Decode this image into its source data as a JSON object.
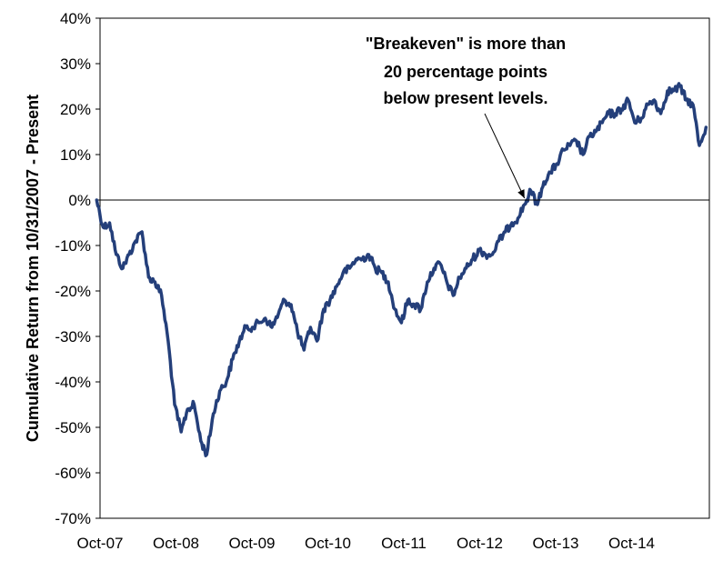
{
  "chart_data": {
    "type": "line",
    "title": "",
    "xlabel": "",
    "ylabel": "Cumulative Return from 10/31/2007 - Present",
    "ylim": [
      -70,
      40
    ],
    "y_unit": "%",
    "y_ticks": [
      "40%",
      "30%",
      "20%",
      "10%",
      "0%",
      "-10%",
      "-20%",
      "-30%",
      "-40%",
      "-50%",
      "-60%",
      "-70%"
    ],
    "x_ticks": [
      "Oct-07",
      "Oct-08",
      "Oct-09",
      "Oct-10",
      "Oct-11",
      "Oct-12",
      "Oct-13",
      "Oct-14"
    ],
    "x_range": [
      "2007-10-31",
      "2015-08-31"
    ],
    "grid": false,
    "legend": "none",
    "line_color": "#243f7a",
    "annotation": {
      "lines": [
        "\"Breakeven\" is more than",
        "20 percentage points",
        "below present levels."
      ],
      "points_to": {
        "x": "2013-04",
        "y": 0
      }
    },
    "series": [
      {
        "x": [
          "2007-10",
          "2007-11",
          "2007-12",
          "2008-01",
          "2008-02",
          "2008-03",
          "2008-04",
          "2008-05",
          "2008-06",
          "2008-07",
          "2008-08",
          "2008-09",
          "2008-10",
          "2008-11",
          "2008-12",
          "2009-01",
          "2009-02",
          "2009-03",
          "2009-04",
          "2009-05",
          "2009-06",
          "2009-07",
          "2009-08",
          "2009-09",
          "2009-10",
          "2009-11",
          "2009-12",
          "2010-01",
          "2010-02",
          "2010-03",
          "2010-04",
          "2010-05",
          "2010-06",
          "2010-07",
          "2010-08",
          "2010-09",
          "2010-10",
          "2010-11",
          "2010-12",
          "2011-01",
          "2011-02",
          "2011-03",
          "2011-04",
          "2011-05",
          "2011-06",
          "2011-07",
          "2011-08",
          "2011-09",
          "2011-10",
          "2011-11",
          "2011-12",
          "2012-01",
          "2012-02",
          "2012-03",
          "2012-04",
          "2012-05",
          "2012-06",
          "2012-07",
          "2012-08",
          "2012-09",
          "2012-10",
          "2012-11",
          "2012-12",
          "2013-01",
          "2013-02",
          "2013-03",
          "2013-04",
          "2013-05",
          "2013-06",
          "2013-07",
          "2013-08",
          "2013-09",
          "2013-10",
          "2013-11",
          "2013-12",
          "2014-01",
          "2014-02",
          "2014-03",
          "2014-04",
          "2014-05",
          "2014-06",
          "2014-07",
          "2014-08",
          "2014-09",
          "2014-10",
          "2014-11",
          "2014-12",
          "2015-01",
          "2015-02",
          "2015-03",
          "2015-04",
          "2015-05",
          "2015-06",
          "2015-07",
          "2015-08"
        ],
        "values": [
          0,
          -6,
          -5,
          -12,
          -15,
          -12,
          -9,
          -7,
          -17,
          -18,
          -21,
          -31,
          -45,
          -51,
          -46,
          -45,
          -53,
          -56,
          -47,
          -42,
          -40,
          -35,
          -31,
          -28,
          -28,
          -27,
          -26,
          -28,
          -25,
          -22,
          -23,
          -29,
          -33,
          -28,
          -31,
          -24,
          -22,
          -19,
          -16,
          -15,
          -13,
          -13,
          -12,
          -15,
          -16,
          -18,
          -24,
          -27,
          -22,
          -23,
          -24,
          -18,
          -15,
          -14,
          -18,
          -21,
          -17,
          -15,
          -13,
          -11,
          -12,
          -12,
          -9,
          -7,
          -5,
          -4,
          -1,
          2,
          -1,
          4,
          6,
          8,
          11,
          12,
          13,
          10,
          14,
          15,
          17,
          19,
          19,
          20,
          22,
          17,
          18,
          21,
          22,
          19,
          24,
          24,
          25,
          22,
          21,
          12,
          16
        ]
      }
    ]
  }
}
